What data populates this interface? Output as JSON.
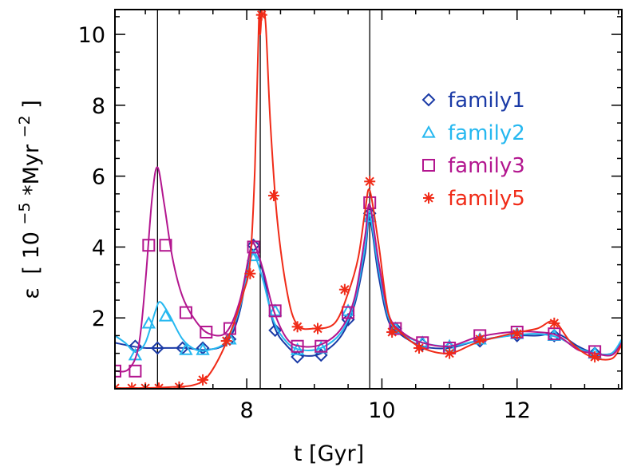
{
  "chart_data": {
    "type": "line",
    "title": "",
    "xlabel": "t [Gyr]",
    "ylabel": "ε [10^-5 * Myr^-2]",
    "ylabel_parts": {
      "sym": "ε",
      "open": "[",
      "base": "10",
      "exp": "−5",
      "mid": "*Myr",
      "exp2": "−2",
      "close": "]"
    },
    "xlim": [
      6.05,
      13.55
    ],
    "ylim": [
      0.0,
      10.7
    ],
    "x_ticks": [
      8,
      10,
      12
    ],
    "x_tick_labels": [
      "8",
      "10",
      "12"
    ],
    "y_ticks": [
      2,
      4,
      6,
      8,
      10
    ],
    "y_tick_labels": [
      "2",
      "4",
      "6",
      "8",
      "10"
    ],
    "vlines": [
      6.68,
      8.2,
      9.82
    ],
    "legend_position": "upper-right",
    "series": [
      {
        "name": "family1",
        "color": "#1a3aa6",
        "marker": "diamond",
        "curve": [
          [
            6.05,
            1.3
          ],
          [
            6.3,
            1.2
          ],
          [
            6.5,
            1.15
          ],
          [
            6.8,
            1.15
          ],
          [
            7.1,
            1.15
          ],
          [
            7.4,
            1.1
          ],
          [
            7.7,
            1.3
          ],
          [
            7.9,
            2.2
          ],
          [
            8.05,
            3.9
          ],
          [
            8.12,
            4.05
          ],
          [
            8.25,
            3.2
          ],
          [
            8.4,
            1.8
          ],
          [
            8.6,
            1.2
          ],
          [
            8.8,
            0.95
          ],
          [
            9.1,
            1.0
          ],
          [
            9.4,
            1.5
          ],
          [
            9.6,
            2.4
          ],
          [
            9.75,
            3.8
          ],
          [
            9.82,
            4.8
          ],
          [
            9.95,
            3.2
          ],
          [
            10.1,
            1.9
          ],
          [
            10.3,
            1.5
          ],
          [
            10.6,
            1.2
          ],
          [
            11.0,
            1.15
          ],
          [
            11.4,
            1.35
          ],
          [
            11.9,
            1.5
          ],
          [
            12.3,
            1.5
          ],
          [
            12.6,
            1.55
          ],
          [
            12.9,
            1.2
          ],
          [
            13.15,
            1.0
          ],
          [
            13.4,
            1.0
          ],
          [
            13.55,
            1.35
          ]
        ],
        "points": [
          [
            6.35,
            1.2
          ],
          [
            6.68,
            1.15
          ],
          [
            7.05,
            1.15
          ],
          [
            7.35,
            1.15
          ],
          [
            7.75,
            1.4
          ],
          [
            8.1,
            4.05
          ],
          [
            8.42,
            1.65
          ],
          [
            8.75,
            0.9
          ],
          [
            9.1,
            0.95
          ],
          [
            9.5,
            1.95
          ],
          [
            9.82,
            4.95
          ],
          [
            10.2,
            1.7
          ],
          [
            10.6,
            1.25
          ],
          [
            11.0,
            1.15
          ],
          [
            11.45,
            1.35
          ],
          [
            12.0,
            1.5
          ],
          [
            12.55,
            1.5
          ],
          [
            13.15,
            1.0
          ]
        ]
      },
      {
        "name": "family2",
        "color": "#26b8f0",
        "marker": "triangle",
        "curve": [
          [
            6.05,
            1.5
          ],
          [
            6.2,
            1.3
          ],
          [
            6.35,
            1.05
          ],
          [
            6.5,
            1.3
          ],
          [
            6.65,
            2.2
          ],
          [
            6.72,
            2.45
          ],
          [
            6.85,
            2.1
          ],
          [
            7.05,
            1.4
          ],
          [
            7.25,
            1.1
          ],
          [
            7.45,
            1.1
          ],
          [
            7.7,
            1.35
          ],
          [
            7.9,
            2.3
          ],
          [
            8.05,
            3.6
          ],
          [
            8.12,
            3.75
          ],
          [
            8.25,
            3.0
          ],
          [
            8.4,
            1.9
          ],
          [
            8.6,
            1.3
          ],
          [
            8.8,
            1.1
          ],
          [
            9.1,
            1.15
          ],
          [
            9.4,
            1.6
          ],
          [
            9.6,
            2.5
          ],
          [
            9.75,
            4.0
          ],
          [
            9.82,
            4.9
          ],
          [
            9.95,
            3.4
          ],
          [
            10.1,
            2.0
          ],
          [
            10.3,
            1.55
          ],
          [
            10.6,
            1.3
          ],
          [
            11.0,
            1.2
          ],
          [
            11.4,
            1.35
          ],
          [
            11.9,
            1.5
          ],
          [
            12.3,
            1.55
          ],
          [
            12.6,
            1.45
          ],
          [
            12.9,
            1.15
          ],
          [
            13.15,
            1.0
          ],
          [
            13.4,
            1.0
          ],
          [
            13.55,
            1.4
          ]
        ],
        "points": [
          [
            6.35,
            0.95
          ],
          [
            6.55,
            1.85
          ],
          [
            6.8,
            2.05
          ],
          [
            7.1,
            1.1
          ],
          [
            7.35,
            1.1
          ],
          [
            7.75,
            1.4
          ],
          [
            8.1,
            3.75
          ],
          [
            8.42,
            2.2
          ],
          [
            8.75,
            1.1
          ],
          [
            9.1,
            1.15
          ],
          [
            9.5,
            2.2
          ],
          [
            9.82,
            4.85
          ],
          [
            10.2,
            1.7
          ],
          [
            10.6,
            1.3
          ],
          [
            11.0,
            1.2
          ],
          [
            11.45,
            1.4
          ],
          [
            12.0,
            1.55
          ],
          [
            12.55,
            1.5
          ],
          [
            13.15,
            1.0
          ]
        ]
      },
      {
        "name": "family3",
        "color": "#b3168f",
        "marker": "square",
        "curve": [
          [
            6.05,
            0.5
          ],
          [
            6.25,
            0.55
          ],
          [
            6.4,
            1.2
          ],
          [
            6.5,
            3.0
          ],
          [
            6.6,
            5.4
          ],
          [
            6.68,
            6.25
          ],
          [
            6.78,
            5.2
          ],
          [
            6.9,
            3.7
          ],
          [
            7.05,
            2.6
          ],
          [
            7.25,
            1.9
          ],
          [
            7.45,
            1.55
          ],
          [
            7.7,
            1.6
          ],
          [
            7.9,
            2.5
          ],
          [
            8.05,
            3.9
          ],
          [
            8.12,
            4.05
          ],
          [
            8.25,
            3.3
          ],
          [
            8.4,
            2.2
          ],
          [
            8.6,
            1.4
          ],
          [
            8.8,
            1.2
          ],
          [
            9.1,
            1.25
          ],
          [
            9.4,
            1.7
          ],
          [
            9.6,
            2.6
          ],
          [
            9.75,
            4.3
          ],
          [
            9.82,
            5.2
          ],
          [
            9.95,
            3.6
          ],
          [
            10.1,
            2.1
          ],
          [
            10.3,
            1.6
          ],
          [
            10.6,
            1.3
          ],
          [
            11.0,
            1.2
          ],
          [
            11.4,
            1.45
          ],
          [
            11.9,
            1.6
          ],
          [
            12.3,
            1.6
          ],
          [
            12.6,
            1.5
          ],
          [
            12.9,
            1.1
          ],
          [
            13.15,
            1.0
          ],
          [
            13.4,
            0.95
          ],
          [
            13.55,
            1.3
          ]
        ],
        "points": [
          [
            6.05,
            0.5
          ],
          [
            6.35,
            0.5
          ],
          [
            6.55,
            4.05
          ],
          [
            6.8,
            4.05
          ],
          [
            7.1,
            2.15
          ],
          [
            7.4,
            1.6
          ],
          [
            7.75,
            1.7
          ],
          [
            8.1,
            4.0
          ],
          [
            8.42,
            2.2
          ],
          [
            8.75,
            1.2
          ],
          [
            9.1,
            1.2
          ],
          [
            9.5,
            2.15
          ],
          [
            9.82,
            5.25
          ],
          [
            10.2,
            1.7
          ],
          [
            10.6,
            1.3
          ],
          [
            11.0,
            1.15
          ],
          [
            11.45,
            1.5
          ],
          [
            12.0,
            1.6
          ],
          [
            12.55,
            1.55
          ],
          [
            13.15,
            1.05
          ]
        ]
      },
      {
        "name": "family5",
        "color": "#f02b18",
        "marker": "asterisk",
        "curve": [
          [
            6.05,
            0.02
          ],
          [
            6.5,
            0.02
          ],
          [
            6.9,
            0.05
          ],
          [
            7.2,
            0.1
          ],
          [
            7.4,
            0.3
          ],
          [
            7.6,
            0.9
          ],
          [
            7.8,
            1.8
          ],
          [
            7.95,
            2.7
          ],
          [
            8.05,
            3.6
          ],
          [
            8.12,
            6.2
          ],
          [
            8.18,
            10.4
          ],
          [
            8.2,
            10.0
          ],
          [
            8.23,
            10.7
          ],
          [
            8.28,
            10.3
          ],
          [
            8.35,
            7.5
          ],
          [
            8.45,
            4.8
          ],
          [
            8.6,
            2.7
          ],
          [
            8.75,
            1.8
          ],
          [
            9.0,
            1.7
          ],
          [
            9.3,
            1.85
          ],
          [
            9.5,
            2.7
          ],
          [
            9.65,
            3.7
          ],
          [
            9.75,
            5.0
          ],
          [
            9.82,
            5.6
          ],
          [
            9.95,
            4.1
          ],
          [
            10.1,
            2.1
          ],
          [
            10.3,
            1.55
          ],
          [
            10.6,
            1.15
          ],
          [
            11.0,
            1.0
          ],
          [
            11.4,
            1.3
          ],
          [
            11.9,
            1.55
          ],
          [
            12.3,
            1.7
          ],
          [
            12.55,
            1.9
          ],
          [
            12.8,
            1.3
          ],
          [
            13.1,
            0.9
          ],
          [
            13.4,
            0.85
          ],
          [
            13.55,
            1.25
          ]
        ],
        "points": [
          [
            6.05,
            0.02
          ],
          [
            6.3,
            0.02
          ],
          [
            6.5,
            0.02
          ],
          [
            6.7,
            0.02
          ],
          [
            7.0,
            0.05
          ],
          [
            7.35,
            0.25
          ],
          [
            7.7,
            1.35
          ],
          [
            8.05,
            3.25
          ],
          [
            8.22,
            10.55
          ],
          [
            8.4,
            5.45
          ],
          [
            8.75,
            1.75
          ],
          [
            9.05,
            1.7
          ],
          [
            9.45,
            2.8
          ],
          [
            9.82,
            5.85
          ],
          [
            10.15,
            1.6
          ],
          [
            10.55,
            1.15
          ],
          [
            11.0,
            1.0
          ],
          [
            11.45,
            1.4
          ],
          [
            12.0,
            1.55
          ],
          [
            12.55,
            1.85
          ],
          [
            13.15,
            0.9
          ]
        ]
      }
    ]
  }
}
